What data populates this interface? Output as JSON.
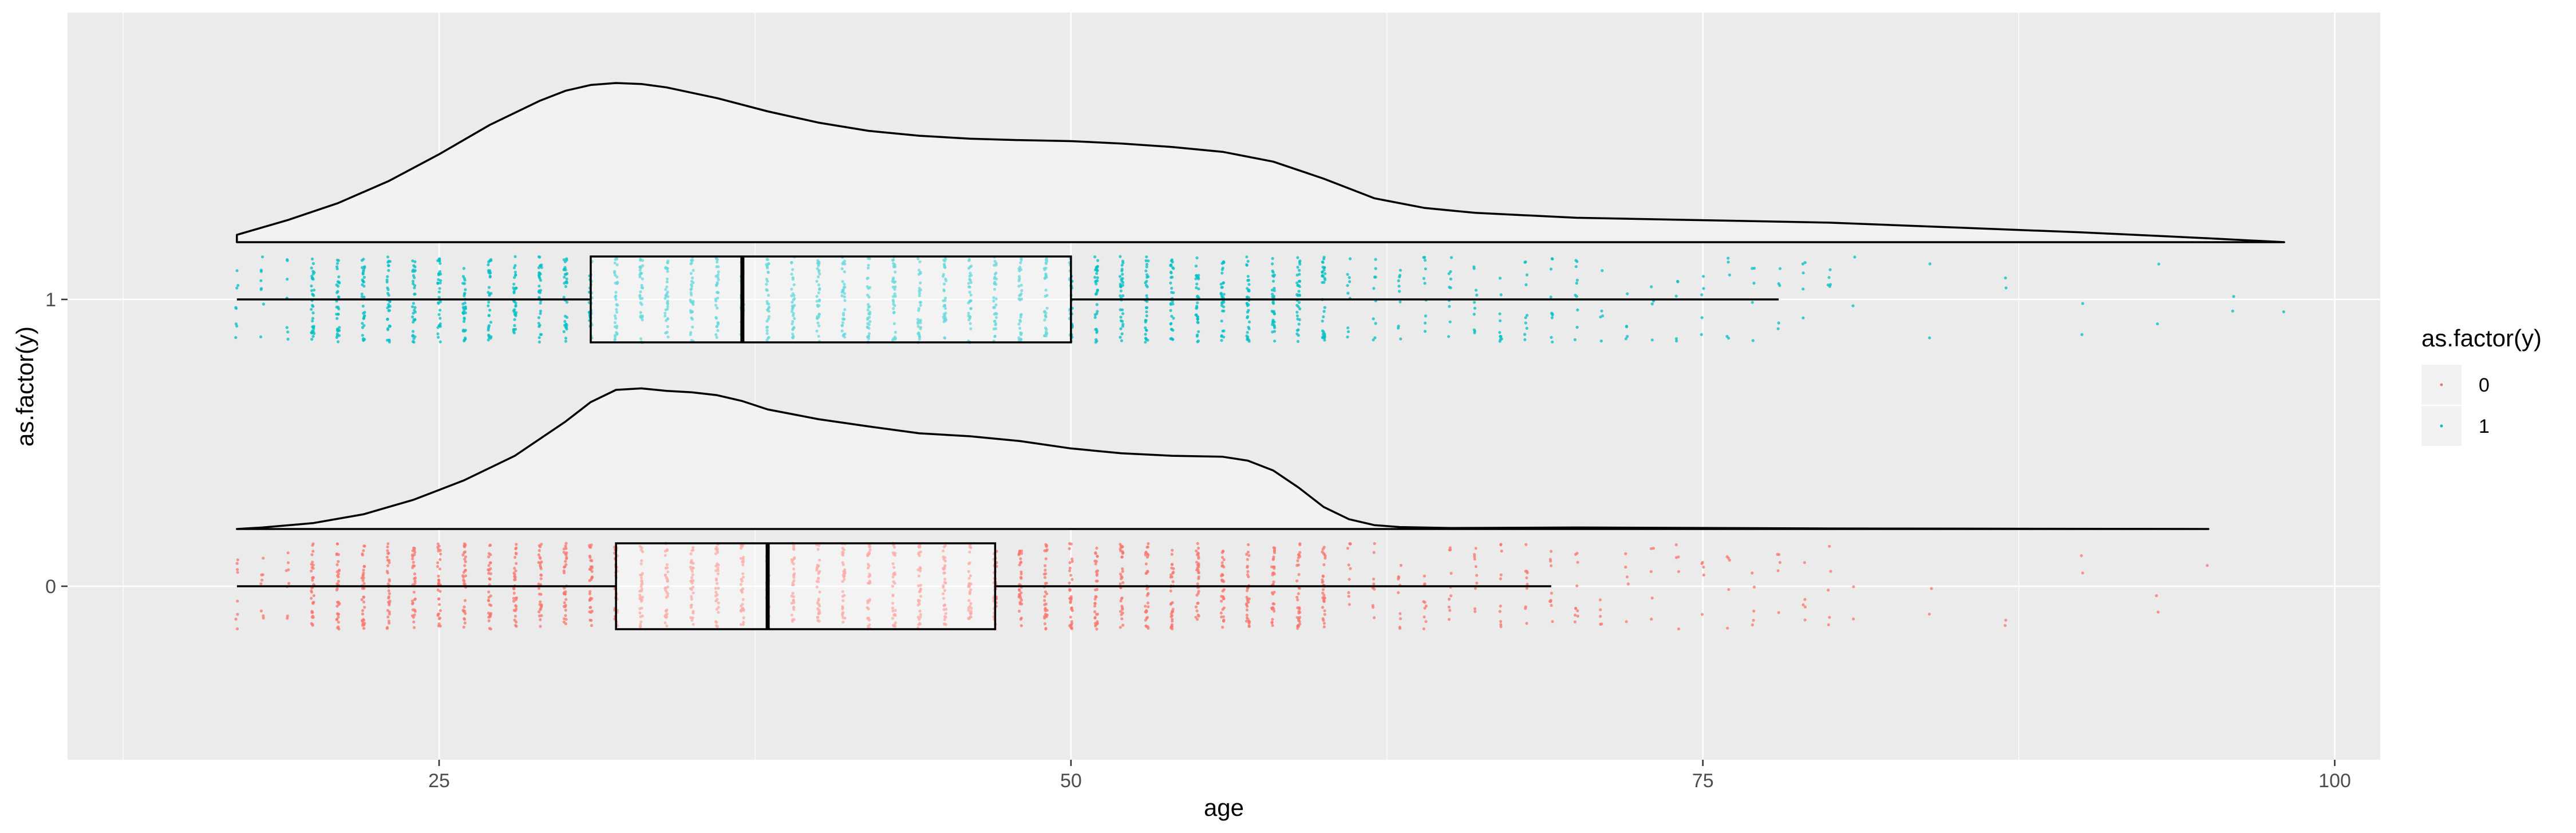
{
  "chart_data": {
    "type": "raincloud",
    "title": "",
    "xlabel": "age",
    "ylabel": "as.factor(y)",
    "xlim": [
      10.3,
      101.8
    ],
    "x_ticks": [
      25,
      50,
      75,
      100
    ],
    "y_categories": [
      "0",
      "1"
    ],
    "grid": true,
    "legend_position": "right",
    "legend": {
      "title": "as.factor(y)",
      "entries": [
        {
          "label": "0",
          "color": "#F8766D"
        },
        {
          "label": "1",
          "color": "#00BFC4"
        }
      ]
    },
    "series": [
      {
        "category": "0",
        "color": "#F8766D",
        "range": [
          17,
          95
        ],
        "boxplot": {
          "whisker_low": 17,
          "q1": 32,
          "median": 38,
          "q3": 47,
          "whisker_high": 69
        },
        "density": {
          "x": [
            17,
            18,
            20,
            22,
            24,
            26,
            28,
            30,
            31,
            32,
            33,
            34,
            35,
            36,
            37,
            38,
            40,
            42,
            44,
            46,
            48,
            50,
            52,
            54,
            56,
            57,
            58,
            59,
            60,
            61,
            62,
            63,
            65,
            70,
            80,
            95
          ],
          "y": [
            0.0,
            0.003,
            0.012,
            0.03,
            0.06,
            0.1,
            0.15,
            0.22,
            0.26,
            0.285,
            0.288,
            0.283,
            0.28,
            0.274,
            0.262,
            0.245,
            0.225,
            0.21,
            0.196,
            0.19,
            0.18,
            0.165,
            0.155,
            0.15,
            0.148,
            0.14,
            0.12,
            0.085,
            0.045,
            0.02,
            0.008,
            0.004,
            0.002,
            0.003,
            0.001,
            0.0
          ]
        }
      },
      {
        "category": "1",
        "color": "#00BFC4",
        "range": [
          17,
          98
        ],
        "boxplot": {
          "whisker_low": 17,
          "q1": 31,
          "median": 37,
          "q3": 50,
          "whisker_high": 78
        },
        "density": {
          "x": [
            17,
            19,
            21,
            23,
            25,
            27,
            29,
            30,
            31,
            32,
            33,
            34,
            36,
            38,
            40,
            42,
            44,
            46,
            48,
            50,
            52,
            54,
            56,
            58,
            60,
            62,
            64,
            66,
            70,
            75,
            80,
            85,
            90,
            95,
            98
          ],
          "y": [
            0.015,
            0.045,
            0.08,
            0.125,
            0.18,
            0.24,
            0.29,
            0.31,
            0.322,
            0.326,
            0.324,
            0.317,
            0.295,
            0.268,
            0.245,
            0.228,
            0.218,
            0.212,
            0.209,
            0.207,
            0.202,
            0.195,
            0.185,
            0.165,
            0.13,
            0.09,
            0.07,
            0.06,
            0.05,
            0.045,
            0.04,
            0.03,
            0.02,
            0.008,
            0.0
          ]
        }
      }
    ]
  }
}
